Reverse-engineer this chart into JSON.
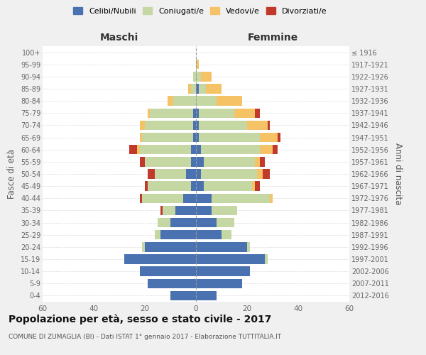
{
  "age_groups": [
    "0-4",
    "5-9",
    "10-14",
    "15-19",
    "20-24",
    "25-29",
    "30-34",
    "35-39",
    "40-44",
    "45-49",
    "50-54",
    "55-59",
    "60-64",
    "65-69",
    "70-74",
    "75-79",
    "80-84",
    "85-89",
    "90-94",
    "95-99",
    "100+"
  ],
  "birth_years": [
    "2012-2016",
    "2007-2011",
    "2002-2006",
    "1997-2001",
    "1992-1996",
    "1987-1991",
    "1982-1986",
    "1977-1981",
    "1972-1976",
    "1967-1971",
    "1962-1966",
    "1957-1961",
    "1952-1956",
    "1947-1951",
    "1942-1946",
    "1937-1941",
    "1932-1936",
    "1927-1931",
    "1922-1926",
    "1917-1921",
    "≤ 1916"
  ],
  "male_celibi": [
    10,
    19,
    22,
    28,
    20,
    14,
    10,
    8,
    5,
    2,
    4,
    2,
    2,
    1,
    1,
    1,
    0,
    0,
    0,
    0,
    0
  ],
  "male_coniugati": [
    0,
    0,
    0,
    0,
    1,
    2,
    5,
    5,
    16,
    17,
    12,
    18,
    20,
    20,
    19,
    17,
    9,
    2,
    1,
    0,
    0
  ],
  "male_vedovi": [
    0,
    0,
    0,
    0,
    0,
    0,
    0,
    0,
    0,
    0,
    0,
    0,
    1,
    1,
    2,
    1,
    2,
    1,
    0,
    0,
    0
  ],
  "male_divorziati": [
    0,
    0,
    0,
    0,
    0,
    0,
    0,
    1,
    1,
    1,
    3,
    2,
    3,
    0,
    0,
    0,
    0,
    0,
    0,
    0,
    0
  ],
  "female_celibi": [
    8,
    18,
    21,
    27,
    20,
    10,
    8,
    6,
    6,
    3,
    2,
    3,
    2,
    1,
    1,
    1,
    0,
    1,
    0,
    0,
    0
  ],
  "female_coniugati": [
    0,
    0,
    0,
    1,
    1,
    4,
    7,
    10,
    23,
    19,
    22,
    20,
    23,
    24,
    19,
    14,
    8,
    3,
    2,
    0,
    0
  ],
  "female_vedovi": [
    0,
    0,
    0,
    0,
    0,
    0,
    0,
    0,
    1,
    1,
    2,
    2,
    5,
    7,
    8,
    8,
    10,
    6,
    4,
    1,
    0
  ],
  "female_divorziati": [
    0,
    0,
    0,
    0,
    0,
    0,
    0,
    0,
    0,
    2,
    3,
    2,
    2,
    1,
    1,
    2,
    0,
    0,
    0,
    0,
    0
  ],
  "colors": {
    "celibi": "#4a72b0",
    "coniugati": "#c5d8a4",
    "vedovi": "#f5c265",
    "divorziati": "#c0392b"
  },
  "legend_labels": [
    "Celibi/Nubili",
    "Coniugati/e",
    "Vedovi/e",
    "Divorziati/e"
  ],
  "xlabel_left": "Maschi",
  "xlabel_right": "Femmine",
  "ylabel_left": "Fasce di età",
  "ylabel_right": "Anni di nascita",
  "title": "Popolazione per età, sesso e stato civile - 2017",
  "subtitle": "COMUNE DI ZUMAGLIA (BI) - Dati ISTAT 1° gennaio 2017 - Elaborazione TUTTITALIA.IT",
  "xlim": 60,
  "background_color": "#f0f0f0",
  "plot_bg_color": "#ffffff"
}
